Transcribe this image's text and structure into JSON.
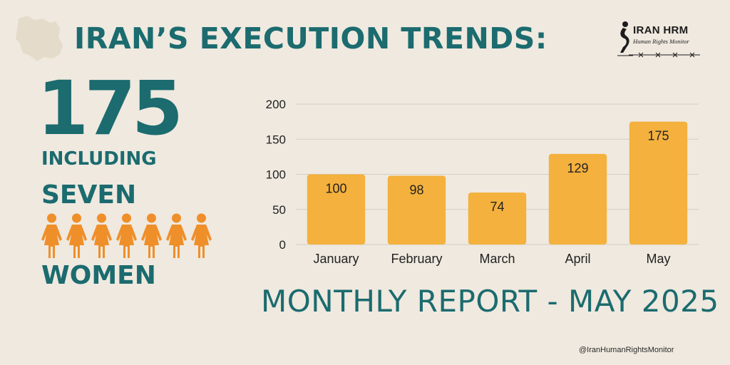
{
  "header": {
    "title": "IRAN’S EXECUTION TRENDS:"
  },
  "logo": {
    "name": "IRAN HRM",
    "tagline": "Human Rights Monitor"
  },
  "highlight": {
    "total": "175",
    "including": "INCLUDING",
    "seven": "SEVEN",
    "women": "WOMEN",
    "figure_count": 7
  },
  "subtitle": "MONTHLY REPORT - MAY 2025",
  "footer": {
    "handle": "@IranHumanRightsMonitor"
  },
  "colors": {
    "accent": "#1b6b6f",
    "bar": "#f4b13d",
    "figure": "#ef8f2a",
    "background": "#efe9df",
    "grid": "#d3cec5"
  },
  "chart_data": {
    "type": "bar",
    "categories": [
      "January",
      "February",
      "March",
      "April",
      "May"
    ],
    "values": [
      100,
      98,
      74,
      129,
      175
    ],
    "ylim": [
      0,
      200
    ],
    "yticks": [
      0,
      50,
      100,
      150,
      200
    ],
    "data_labels": true,
    "grid": true,
    "title": "",
    "xlabel": "",
    "ylabel": ""
  }
}
